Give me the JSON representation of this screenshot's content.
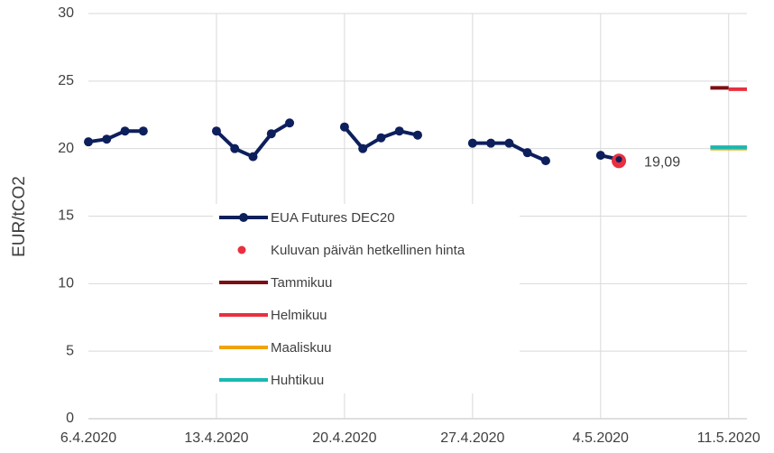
{
  "chart_data": {
    "type": "line",
    "y_label": "EUR/tCO2",
    "categories": [
      "6.4.2020",
      null,
      null,
      null,
      null,
      null,
      null,
      "13.4.2020",
      null,
      null,
      null,
      null,
      null,
      null,
      "20.4.2020",
      null,
      null,
      null,
      null,
      null,
      null,
      "27.4.2020",
      null,
      null,
      null,
      null,
      null,
      null,
      "4.5.2020",
      null,
      null,
      null,
      null,
      null,
      null,
      "11.5.2020",
      null
    ],
    "series": [
      {
        "name": "EUA Futures DEC20",
        "color": "#0d1f5c",
        "marker": true,
        "values": [
          20.5,
          20.7,
          21.3,
          21.3,
          null,
          null,
          null,
          21.3,
          20.0,
          19.4,
          21.1,
          21.9,
          null,
          null,
          21.6,
          20.0,
          20.8,
          21.3,
          21.0,
          null,
          null,
          20.4,
          20.4,
          20.4,
          19.7,
          19.1,
          null,
          null,
          19.5,
          19.2,
          null,
          null,
          null,
          null,
          null,
          null,
          null
        ]
      },
      {
        "name": "Kuluvan päivän hetkellinen hinta",
        "color": "#e8303f",
        "dot": true,
        "values": [
          null,
          null,
          null,
          null,
          null,
          null,
          null,
          null,
          null,
          null,
          null,
          null,
          null,
          null,
          null,
          null,
          null,
          null,
          null,
          null,
          null,
          null,
          null,
          null,
          null,
          null,
          null,
          null,
          null,
          19.09,
          null,
          null,
          null,
          null,
          null,
          null,
          null
        ],
        "value_labels": [
          null,
          null,
          null,
          null,
          null,
          null,
          null,
          null,
          null,
          null,
          null,
          null,
          null,
          null,
          null,
          null,
          null,
          null,
          null,
          null,
          null,
          null,
          null,
          null,
          null,
          null,
          null,
          null,
          null,
          "19,09",
          null,
          null,
          null,
          null,
          null,
          null,
          null
        ]
      },
      {
        "name": "Tammikuu",
        "color": "#7b0f14",
        "values": [
          null,
          null,
          null,
          null,
          null,
          null,
          null,
          null,
          null,
          null,
          null,
          null,
          null,
          null,
          null,
          null,
          null,
          null,
          null,
          null,
          null,
          null,
          null,
          null,
          null,
          null,
          null,
          null,
          null,
          null,
          null,
          null,
          null,
          null,
          24.5,
          24.5,
          null
        ]
      },
      {
        "name": "Helmikuu",
        "color": "#e8303f",
        "values": [
          null,
          null,
          null,
          null,
          null,
          null,
          null,
          null,
          null,
          null,
          null,
          null,
          null,
          null,
          null,
          null,
          null,
          null,
          null,
          null,
          null,
          null,
          null,
          null,
          null,
          null,
          null,
          null,
          null,
          null,
          null,
          null,
          null,
          null,
          null,
          24.4,
          24.4
        ]
      },
      {
        "name": "Maaliskuu",
        "color": "#f0a30a",
        "values": [
          null,
          null,
          null,
          null,
          null,
          null,
          null,
          null,
          null,
          null,
          null,
          null,
          null,
          null,
          null,
          null,
          null,
          null,
          null,
          null,
          null,
          null,
          null,
          null,
          null,
          null,
          null,
          null,
          null,
          null,
          null,
          null,
          null,
          null,
          20.0,
          20.0,
          20.0
        ]
      },
      {
        "name": "Huhtikuu",
        "color": "#1ab8b0",
        "values": [
          null,
          null,
          null,
          null,
          null,
          null,
          null,
          null,
          null,
          null,
          null,
          null,
          null,
          null,
          null,
          null,
          null,
          null,
          null,
          null,
          null,
          null,
          null,
          null,
          null,
          null,
          null,
          null,
          null,
          null,
          null,
          null,
          null,
          null,
          20.1,
          20.1,
          20.1
        ]
      }
    ],
    "ylim": [
      0,
      30
    ],
    "yticks": [
      0,
      5,
      10,
      15,
      20,
      25,
      30
    ],
    "grid": true
  }
}
